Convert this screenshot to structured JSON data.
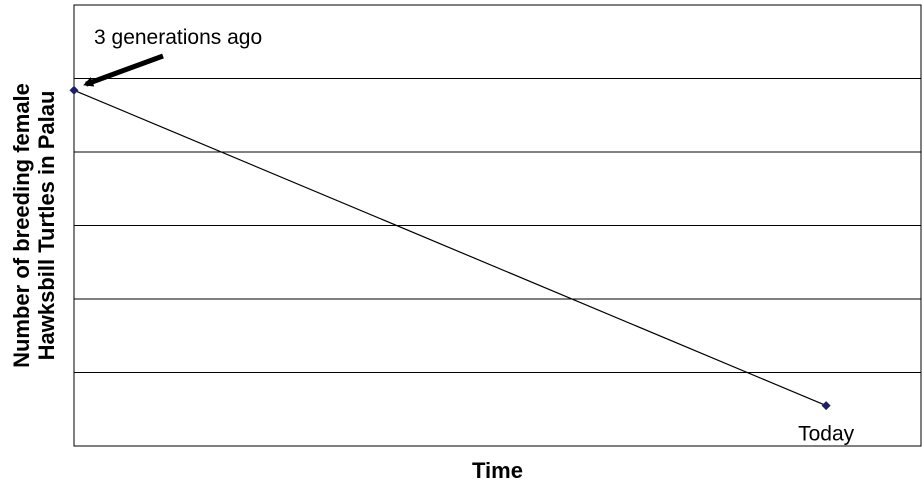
{
  "chart_data": {
    "type": "line",
    "title": "",
    "xlabel": "Time",
    "ylabel_lines": [
      "Number of breeding female",
      "Hawksbill Turtles in Palau"
    ],
    "xlim": [
      0,
      1
    ],
    "ylim": [
      0,
      6
    ],
    "grid": true,
    "gridlines_y": [
      1,
      2,
      3,
      4,
      5
    ],
    "legend": "none",
    "series": [
      {
        "x": [
          0,
          0.888
        ],
        "y": [
          4.84,
          0.55
        ],
        "color": "#1f1f66"
      }
    ],
    "annotations": [
      {
        "text": "3 generations ago",
        "x": 0,
        "y": 4.84,
        "arrow": true
      },
      {
        "text": "Today",
        "x": 0.888,
        "y": 0.55,
        "arrow": false
      }
    ],
    "colors": {
      "line": "#000000",
      "marker": "#1f1f66",
      "grid": "#000000",
      "frame": "#000000"
    }
  }
}
